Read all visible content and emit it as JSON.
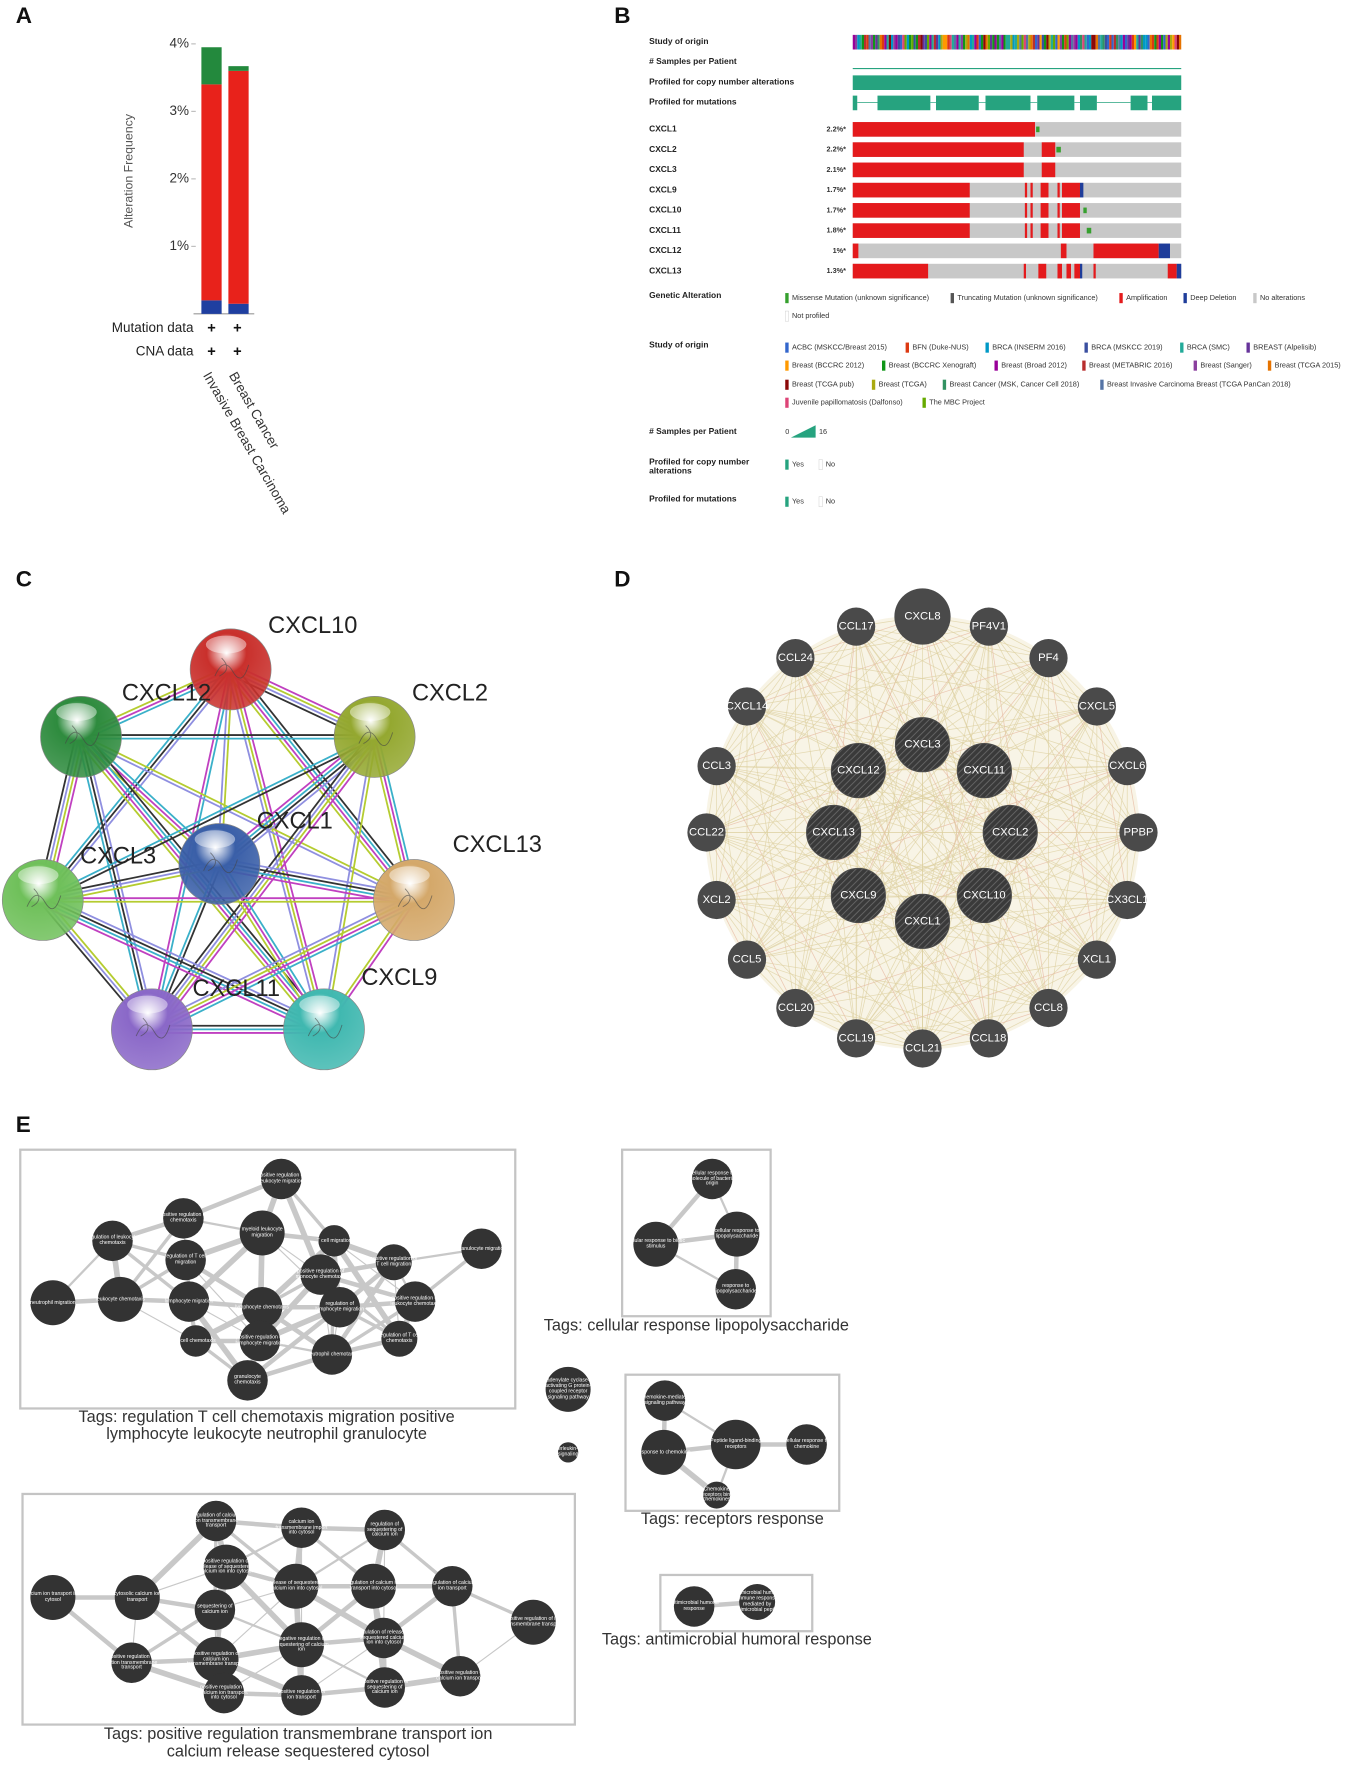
{
  "panel_labels": [
    "A",
    "B",
    "C",
    "D",
    "E"
  ],
  "chart_data": {
    "type": "bar",
    "stacked": true,
    "ylabel": "Alteration Frequency",
    "categories": [
      "Invasive Breast Carcinoma",
      "Breast Cancer"
    ],
    "series": [
      {
        "color": "#1f3fa0",
        "values": [
          0.2,
          0.15
        ]
      },
      {
        "color": "#e8221b",
        "values": [
          3.2,
          3.45
        ]
      },
      {
        "color": "#23893d",
        "values": [
          0.55,
          0.07
        ]
      }
    ],
    "ylim": [
      0,
      4.1
    ],
    "yticks": [
      {
        "value": 1,
        "label": "1%"
      },
      {
        "value": 2,
        "label": "2%"
      },
      {
        "value": 3,
        "label": "3%"
      },
      {
        "value": 4,
        "label": "4%"
      }
    ],
    "data_rows": [
      {
        "label": "Mutation data",
        "cells": [
          "+",
          "+"
        ]
      },
      {
        "label": "CNA data",
        "cells": [
          "+",
          "+"
        ]
      }
    ]
  },
  "oncoprint": {
    "tracks": [
      "Study of origin",
      "# Samples per Patient",
      "Profiled for copy number alterations",
      "Profiled for mutations"
    ],
    "track_color": "#26a37f",
    "genes": [
      {
        "name": "CXCL1",
        "frequency": "2.2%*"
      },
      {
        "name": "CXCL2",
        "frequency": "2.2%*"
      },
      {
        "name": "CXCL3",
        "frequency": "2.1%*"
      },
      {
        "name": "CXCL9",
        "frequency": "1.7%*"
      },
      {
        "name": "CXCL10",
        "frequency": "1.7%*"
      },
      {
        "name": "CXCL11",
        "frequency": "1.8%*"
      },
      {
        "name": "CXCL12",
        "frequency": "1%*"
      },
      {
        "name": "CXCL13",
        "frequency": "1.3%*"
      }
    ],
    "genetic_alteration": {
      "title": "Genetic Alteration",
      "items": [
        {
          "label": "Missense Mutation (unknown significance)",
          "color": "#36a02e"
        },
        {
          "label": "Truncating Mutation (unknown significance)",
          "color": "#555555"
        },
        {
          "label": "Amplification",
          "color": "#e41a1c"
        },
        {
          "label": "Deep Deletion",
          "color": "#1f3d9a"
        },
        {
          "label": "No alterations",
          "color": "#c8c8c8"
        },
        {
          "label": "Not profiled",
          "color": "#ffffff"
        }
      ]
    },
    "study_of_origin": {
      "title": "Study of origin",
      "items": [
        {
          "label": "ACBC (MSKCC/Breast 2015)",
          "color": "#3366cc"
        },
        {
          "label": "BFN (Duke-NUS)",
          "color": "#dc3912"
        },
        {
          "label": "BRCA (INSERM 2016)",
          "color": "#0099c6"
        },
        {
          "label": "BRCA (MSKCC 2019)",
          "color": "#3a4fa0"
        },
        {
          "label": "BRCA (SMC)",
          "color": "#22aa99"
        },
        {
          "label": "BREAST (Alpelisib)",
          "color": "#66339a"
        },
        {
          "label": "Breast (BCCRC 2012)",
          "color": "#ff9900"
        },
        {
          "label": "Breast (BCCRC Xenograft)",
          "color": "#109618"
        },
        {
          "label": "Breast (Broad 2012)",
          "color": "#990099"
        },
        {
          "label": "Breast (METABRIC 2016)",
          "color": "#b82e2e"
        },
        {
          "label": "Breast (Sanger)",
          "color": "#8b3f9e"
        },
        {
          "label": "Breast (TCGA 2015)",
          "color": "#e67300"
        },
        {
          "label": "Breast (TCGA pub)",
          "color": "#8b0707"
        },
        {
          "label": "Breast (TCGA)",
          "color": "#aaaa11"
        },
        {
          "label": "Breast Cancer (MSK, Cancer Cell 2018)",
          "color": "#329262"
        },
        {
          "label": "Breast Invasive Carcinoma Breast (TCGA PanCan 2018)",
          "color": "#5574a6"
        },
        {
          "label": "Juvenile papillomatosis (Dalfonso)",
          "color": "#dd4477"
        },
        {
          "label": "The MBC Project",
          "color": "#66aa00"
        }
      ]
    },
    "samples_legend": {
      "title": "# Samples per Patient",
      "min": "0",
      "max": "16"
    },
    "profiled_cna_legend": {
      "title_lines": [
        "Profiled for copy number",
        "alterations"
      ],
      "items": [
        "Yes",
        "No"
      ]
    },
    "profiled_mut_legend": {
      "title_lines": [
        "Profiled for mutations"
      ],
      "items": [
        "Yes",
        "No"
      ]
    }
  },
  "string_network": {
    "nodes": [
      {
        "label": "CXCL10",
        "color": "#c9302c"
      },
      {
        "label": "CXCL12",
        "color": "#2e8b3e"
      },
      {
        "label": "CXCL2",
        "color": "#94a830"
      },
      {
        "label": "CXCL1",
        "color": "#3a5fa8"
      },
      {
        "label": "CXCL3",
        "color": "#6fc05a"
      },
      {
        "label": "CXCL13",
        "color": "#d4a86a"
      },
      {
        "label": "CXCL11",
        "color": "#8a68c8"
      },
      {
        "label": "CXCL9",
        "color": "#40b8b0"
      }
    ]
  },
  "gene_network": {
    "node_color": "#4a4a4a",
    "inner": [
      "CXCL3",
      "CXCL11",
      "CXCL2",
      "CXCL10",
      "CXCL1",
      "CXCL9",
      "CXCL13",
      "CXCL12"
    ],
    "outer": [
      "CXCL8",
      "PF4V1",
      "PF4",
      "CXCL5",
      "CXCL6",
      "PPBP",
      "CX3CL1",
      "XCL1",
      "CCL8",
      "CCL18",
      "CCL21",
      "CCL19",
      "CCL20",
      "CCL5",
      "XCL2",
      "CCL22",
      "CCL3",
      "CXCL14",
      "CCL24",
      "CCL17"
    ]
  },
  "enrichment": {
    "node_color": "#333333",
    "clusters": [
      {
        "tag_lines": [
          "Tags: regulation T cell chemotaxis migration positive",
          "lymphocyte leukocyte neutrophil granulocyte"
        ],
        "nodes": [
          "positive regulation of leukocyte migration",
          "positive regulation of chemotaxis",
          "regulation of leukocyte chemotaxis",
          "myeloid leukocyte migration",
          "T cell migration",
          "granulocyte migration",
          "regulation of T cell migration",
          "positive regulation of T cell migration",
          "positive regulation of monocyte chemotaxis",
          "neutrophil migration",
          "leukocyte chemotaxis",
          "lymphocyte migration",
          "lymphocyte chemotaxis",
          "regulation of lymphocyte migration",
          "positive regulation of leukocyte chemotaxis",
          "T cell chemotaxis",
          "positive regulation of lymphocyte migration",
          "regulation of T cell chemotaxis",
          "neutrophil chemotaxis",
          "granulocyte chemotaxis"
        ]
      },
      {
        "tag_lines": [
          "Tags: cellular response lipopolysaccharide"
        ],
        "nodes": [
          "cellular response to molecule of bacterial origin",
          "cellular response to biotic stimulus",
          "cellular response to lipopolysaccharide",
          "response to lipopolysaccharide"
        ]
      },
      {
        "tag_lines": [
          "Tags: receptors response"
        ],
        "nodes": [
          "chemokine-mediated signaling pathway",
          "response to chemokine",
          "Peptide ligand-binding receptors",
          "cellular response to chemokine",
          "Chemokine receptors bind chemokines"
        ]
      },
      {
        "tag_lines": [
          "Tags: positive regulation transmembrane transport ion",
          "calcium release sequestered cytosol"
        ],
        "nodes": [
          "regulation of calcium ion transmembrane transport",
          "calcium ion transmembrane import into cytosol",
          "regulation of sequestering of calcium ion",
          "positive regulation of release of sequestered calcium ion into cytosol",
          "release of sequestered calcium ion into cytosol",
          "regulation of calcium ion transport into cytosol",
          "regulation of calcium ion transport",
          "calcium ion transport into cytosol",
          "cytosolic calcium ion transport",
          "sequestering of calcium ion",
          "positive regulation of ion transmembrane transport",
          "negative regulation of sequestering of calcium ion",
          "regulation of release of sequestered calcium ion into cytosol",
          "positive regulation of cation transmembrane transport",
          "positive regulation of calcium ion transmembrane transport",
          "positive regulation of calcium ion transport",
          "positive regulation of calcium ion transport into cytosol",
          "positive regulation of ion transport",
          "positive regulation of sequestering of calcium ion"
        ]
      },
      {
        "tag_lines": [
          "Tags: antimicrobial humoral response"
        ],
        "nodes": [
          "antimicrobial humoral response",
          "antimicrobial humoral immune response mediated by antimicrobial peptide"
        ]
      }
    ],
    "loose_nodes": [
      "adenylate cyclase-activating G protein-coupled receptor signaling pathway",
      "interleukin-10 signaling"
    ]
  }
}
